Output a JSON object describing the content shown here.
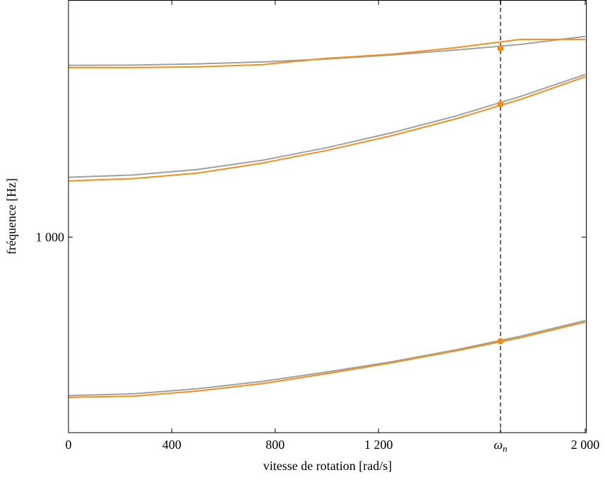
{
  "chart_data": {
    "type": "line",
    "xlabel": "vitesse de rotation [rad/s]",
    "ylabel": "fréquence [Hz]",
    "x": [
      0,
      250,
      500,
      750,
      1000,
      1250,
      1500,
      1750,
      2000
    ],
    "series": [
      {
        "color": "#a0a0a0",
        "values": [
          661,
          664,
          673,
          686,
          703,
          722,
          745,
          772,
          804
        ]
      },
      {
        "color": "#a0a0a0",
        "values": [
          1169,
          1176,
          1193,
          1222,
          1263,
          1313,
          1372,
          1444,
          1529
        ]
      },
      {
        "color": "#a0a0a0",
        "values": [
          1566,
          1567,
          1572,
          1580,
          1592,
          1609,
          1630,
          1654,
          1689
        ]
      },
      {
        "color": "#f28e1c",
        "values": [
          658,
          660,
          669,
          682,
          700,
          720,
          743,
          769,
          801
        ]
      },
      {
        "color": "#f28e1c",
        "values": [
          1158,
          1165,
          1182,
          1213,
          1254,
          1303,
          1362,
          1433,
          1520
        ]
      },
      {
        "color": "#f28e1c",
        "values": [
          1557,
          1557,
          1560,
          1569,
          1595,
          1612,
          1640,
          1676,
          1676
        ]
      }
    ],
    "markers": {
      "color": "#f28e1c",
      "x": [
        1672,
        1672,
        1672
      ],
      "values": [
        762,
        1415,
        1637
      ]
    },
    "vline": 1672,
    "xlim": [
      0,
      2000
    ],
    "ylim": [
      600,
      1854
    ],
    "ylog": true,
    "xticks": [
      0,
      400,
      800,
      {
        "value": 1200,
        "label": "1 200"
      },
      {
        "value": 1672,
        "label": "ω_n"
      },
      {
        "value": 2000,
        "label": "2 000"
      }
    ],
    "yticks": [
      {
        "value": 1000,
        "label": "1 000"
      }
    ]
  }
}
